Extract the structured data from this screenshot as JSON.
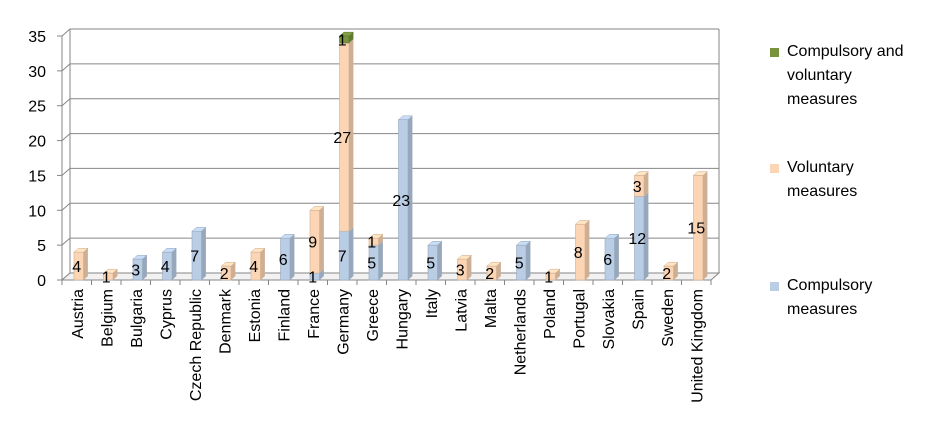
{
  "chart_data": {
    "type": "bar",
    "stacked": true,
    "three_d": true,
    "categories": [
      "Austria",
      "Belgium",
      "Bulgaria",
      "Cyprus",
      "Czech Republic",
      "Denmark",
      "Estonia",
      "Finland",
      "France",
      "Germany",
      "Greece",
      "Hungary",
      "Italy",
      "Latvia",
      "Malta",
      "Netherlands",
      "Poland",
      "Portugal",
      "Slovakia",
      "Spain",
      "Sweden",
      "United Kingdom"
    ],
    "series": [
      {
        "name": "Compulsory measures",
        "color": "#b9cde5",
        "values": [
          0,
          0,
          3,
          4,
          7,
          0,
          0,
          6,
          1,
          7,
          5,
          23,
          5,
          0,
          0,
          5,
          0,
          0,
          6,
          12,
          0,
          0
        ]
      },
      {
        "name": "Voluntary measures",
        "color": "#fcd5b5",
        "values": [
          4,
          1,
          0,
          0,
          0,
          2,
          4,
          0,
          9,
          27,
          1,
          0,
          0,
          3,
          2,
          0,
          1,
          8,
          0,
          3,
          2,
          15
        ]
      },
      {
        "name": "Compulsory and voluntary measures",
        "color": "#77933c",
        "values": [
          0,
          0,
          0,
          0,
          0,
          0,
          0,
          0,
          0,
          1,
          0,
          0,
          0,
          0,
          0,
          0,
          0,
          0,
          0,
          0,
          0,
          0
        ]
      }
    ],
    "data_labels": [
      {
        "category": "Austria",
        "text": "4"
      },
      {
        "category": "Belgium",
        "text": "1"
      },
      {
        "category": "Bulgaria",
        "text": "3"
      },
      {
        "category": "Cyprus",
        "text": "4"
      },
      {
        "category": "Czech Republic",
        "text": "7"
      },
      {
        "category": "Denmark",
        "text": "2"
      },
      {
        "category": "Estonia",
        "text": "4"
      },
      {
        "category": "Finland",
        "text": "6"
      },
      {
        "category": "France",
        "text": "1",
        "series": "Compulsory measures"
      },
      {
        "category": "France",
        "text": "9",
        "series": "Voluntary measures"
      },
      {
        "category": "Germany",
        "text": "7",
        "series": "Compulsory measures"
      },
      {
        "category": "Germany",
        "text": "27",
        "series": "Voluntary measures"
      },
      {
        "category": "Germany",
        "text": "1",
        "series": "Compulsory and voluntary measures"
      },
      {
        "category": "Greece",
        "text": "5",
        "series": "Compulsory measures"
      },
      {
        "category": "Greece",
        "text": "1",
        "series": "Voluntary measures"
      },
      {
        "category": "Hungary",
        "text": "23"
      },
      {
        "category": "Italy",
        "text": "5"
      },
      {
        "category": "Latvia",
        "text": "3"
      },
      {
        "category": "Malta",
        "text": "2"
      },
      {
        "category": "Netherlands",
        "text": "5"
      },
      {
        "category": "Poland",
        "text": "1"
      },
      {
        "category": "Portugal",
        "text": "8"
      },
      {
        "category": "Slovakia",
        "text": "6"
      },
      {
        "category": "Spain",
        "text": "12",
        "series": "Compulsory measures"
      },
      {
        "category": "Spain",
        "text": "3",
        "series": "Voluntary measures"
      },
      {
        "category": "Sweden",
        "text": "2"
      },
      {
        "category": "United Kingdom",
        "text": "15"
      }
    ],
    "yticks": [
      "0",
      "5",
      "10",
      "15",
      "20",
      "25",
      "30",
      "35"
    ],
    "ylim": [
      0,
      35
    ],
    "grid": true,
    "legend": {
      "position": "right",
      "items": [
        {
          "label": "Compulsory and voluntary measures",
          "color": "#77933c"
        },
        {
          "label": "Voluntary measures",
          "color": "#fcd5b5"
        },
        {
          "label": "Compulsory measures",
          "color": "#b9cde5"
        }
      ]
    }
  }
}
